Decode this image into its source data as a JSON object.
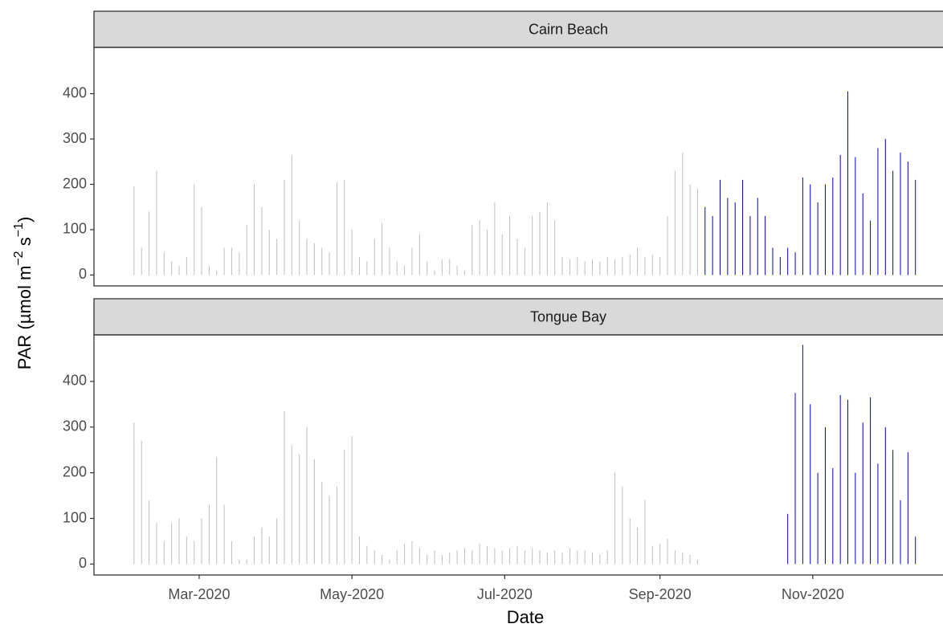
{
  "ylabel": [
    "PAR (µmol m",
    "−2",
    " s",
    "−1",
    ")"
  ],
  "xlabel": "Date",
  "xlim": [
    "2020-01-19",
    "2020-12-23"
  ],
  "xticks": [
    {
      "value": "2020-03-01",
      "label": "Mar-2020"
    },
    {
      "value": "2020-05-01",
      "label": "May-2020"
    },
    {
      "value": "2020-07-01",
      "label": "Jul-2020"
    },
    {
      "value": "2020-09-01",
      "label": "Sep-2020"
    },
    {
      "value": "2020-11-01",
      "label": "Nov-2020"
    }
  ],
  "chart_data": [
    {
      "type": "bar",
      "title": "Cairn Beach",
      "x": [
        "2020-02-04",
        "2020-02-07",
        "2020-02-10",
        "2020-02-13",
        "2020-02-16",
        "2020-02-19",
        "2020-02-22",
        "2020-02-25",
        "2020-02-28",
        "2020-03-02",
        "2020-03-05",
        "2020-03-08",
        "2020-03-11",
        "2020-03-14",
        "2020-03-17",
        "2020-03-20",
        "2020-03-23",
        "2020-03-26",
        "2020-03-29",
        "2020-04-01",
        "2020-04-04",
        "2020-04-07",
        "2020-04-10",
        "2020-04-13",
        "2020-04-16",
        "2020-04-19",
        "2020-04-22",
        "2020-04-25",
        "2020-04-28",
        "2020-05-01",
        "2020-05-04",
        "2020-05-07",
        "2020-05-10",
        "2020-05-13",
        "2020-05-16",
        "2020-05-19",
        "2020-05-22",
        "2020-05-25",
        "2020-05-28",
        "2020-05-31",
        "2020-06-03",
        "2020-06-06",
        "2020-06-09",
        "2020-06-12",
        "2020-06-15",
        "2020-06-18",
        "2020-06-21",
        "2020-06-24",
        "2020-06-27",
        "2020-06-30",
        "2020-07-03",
        "2020-07-06",
        "2020-07-09",
        "2020-07-12",
        "2020-07-15",
        "2020-07-18",
        "2020-07-21",
        "2020-07-24",
        "2020-07-27",
        "2020-07-30",
        "2020-08-02",
        "2020-08-05",
        "2020-08-08",
        "2020-08-11",
        "2020-08-14",
        "2020-08-17",
        "2020-08-20",
        "2020-08-23",
        "2020-08-26",
        "2020-08-29",
        "2020-09-01",
        "2020-09-04",
        "2020-09-07",
        "2020-09-10",
        "2020-09-13",
        "2020-09-16",
        "2020-09-19",
        "2020-09-22",
        "2020-09-25",
        "2020-09-28",
        "2020-10-01",
        "2020-10-04",
        "2020-10-07",
        "2020-10-10",
        "2020-10-13",
        "2020-10-16",
        "2020-10-19",
        "2020-10-22",
        "2020-10-25",
        "2020-10-28",
        "2020-10-31",
        "2020-11-03",
        "2020-11-06",
        "2020-11-09",
        "2020-11-12",
        "2020-11-15",
        "2020-11-18",
        "2020-11-21",
        "2020-11-24",
        "2020-11-27",
        "2020-11-30",
        "2020-12-03",
        "2020-12-06",
        "2020-12-09",
        "2020-12-12"
      ],
      "series": [
        {
          "color": "#bebebe",
          "values": [
            195,
            60,
            140,
            230,
            50,
            30,
            20,
            40,
            200,
            150,
            20,
            10,
            60,
            60,
            50,
            110,
            200,
            150,
            100,
            80,
            210,
            265,
            120,
            80,
            70,
            60,
            50,
            205,
            210,
            100,
            40,
            30,
            80,
            115,
            60,
            30,
            20,
            60,
            90,
            30,
            10,
            35,
            35,
            20,
            10,
            110,
            120,
            100,
            160,
            90,
            130,
            80,
            60,
            130,
            140,
            160,
            120,
            40,
            35,
            40,
            30,
            35,
            30,
            40,
            35,
            40,
            45,
            60,
            40,
            45,
            40,
            130,
            230,
            270,
            200,
            190,
            null,
            null,
            null,
            null,
            null,
            null,
            null,
            null,
            null,
            null,
            null,
            null,
            null,
            null,
            null,
            null,
            null,
            null,
            null,
            null,
            null,
            null,
            null,
            null,
            null,
            null,
            null,
            null,
            null
          ]
        },
        {
          "color": "#0000cd",
          "values": [
            null,
            null,
            null,
            null,
            null,
            null,
            null,
            null,
            null,
            null,
            null,
            null,
            null,
            null,
            null,
            null,
            null,
            null,
            null,
            null,
            null,
            null,
            null,
            null,
            null,
            null,
            null,
            null,
            null,
            null,
            null,
            null,
            null,
            null,
            null,
            null,
            null,
            null,
            null,
            null,
            null,
            null,
            null,
            null,
            null,
            null,
            null,
            null,
            null,
            null,
            null,
            null,
            null,
            null,
            null,
            null,
            null,
            null,
            null,
            null,
            null,
            null,
            null,
            null,
            null,
            null,
            null,
            null,
            null,
            null,
            null,
            null,
            null,
            null,
            null,
            null,
            150,
            130,
            210,
            170,
            160,
            210,
            130,
            170,
            130,
            60,
            40,
            60,
            50,
            215,
            200,
            160,
            200,
            215,
            265,
            405,
            260,
            180,
            120,
            280,
            300,
            230,
            270,
            250,
            210
          ]
        }
      ],
      "ylim": [
        -24,
        502
      ],
      "yticks": [
        0,
        100,
        200,
        300,
        400
      ]
    },
    {
      "type": "bar",
      "title": "Tongue Bay",
      "x": [
        "2020-02-04",
        "2020-02-07",
        "2020-02-10",
        "2020-02-13",
        "2020-02-16",
        "2020-02-19",
        "2020-02-22",
        "2020-02-25",
        "2020-02-28",
        "2020-03-02",
        "2020-03-05",
        "2020-03-08",
        "2020-03-11",
        "2020-03-14",
        "2020-03-17",
        "2020-03-20",
        "2020-03-23",
        "2020-03-26",
        "2020-03-29",
        "2020-04-01",
        "2020-04-04",
        "2020-04-07",
        "2020-04-10",
        "2020-04-13",
        "2020-04-16",
        "2020-04-19",
        "2020-04-22",
        "2020-04-25",
        "2020-04-28",
        "2020-05-01",
        "2020-05-04",
        "2020-05-07",
        "2020-05-10",
        "2020-05-13",
        "2020-05-16",
        "2020-05-19",
        "2020-05-22",
        "2020-05-25",
        "2020-05-28",
        "2020-05-31",
        "2020-06-03",
        "2020-06-06",
        "2020-06-09",
        "2020-06-12",
        "2020-06-15",
        "2020-06-18",
        "2020-06-21",
        "2020-06-24",
        "2020-06-27",
        "2020-06-30",
        "2020-07-03",
        "2020-07-06",
        "2020-07-09",
        "2020-07-12",
        "2020-07-15",
        "2020-07-18",
        "2020-07-21",
        "2020-07-24",
        "2020-07-27",
        "2020-07-30",
        "2020-08-02",
        "2020-08-05",
        "2020-08-08",
        "2020-08-11",
        "2020-08-14",
        "2020-08-17",
        "2020-08-20",
        "2020-08-23",
        "2020-08-26",
        "2020-08-29",
        "2020-09-01",
        "2020-09-04",
        "2020-09-07",
        "2020-09-10",
        "2020-09-13",
        "2020-09-16",
        "2020-09-19",
        "2020-09-22",
        "2020-09-25",
        "2020-09-28",
        "2020-10-01",
        "2020-10-04",
        "2020-10-07",
        "2020-10-10",
        "2020-10-13",
        "2020-10-16",
        "2020-10-19",
        "2020-10-22",
        "2020-10-25",
        "2020-10-28",
        "2020-10-31",
        "2020-11-03",
        "2020-11-06",
        "2020-11-09",
        "2020-11-12",
        "2020-11-15",
        "2020-11-18",
        "2020-11-21",
        "2020-11-24",
        "2020-11-27",
        "2020-11-30",
        "2020-12-03",
        "2020-12-06",
        "2020-12-09",
        "2020-12-12"
      ],
      "series": [
        {
          "color": "#bebebe",
          "values": [
            310,
            270,
            140,
            90,
            50,
            90,
            100,
            60,
            50,
            100,
            130,
            235,
            130,
            50,
            10,
            10,
            60,
            80,
            60,
            100,
            335,
            260,
            240,
            300,
            230,
            180,
            150,
            170,
            250,
            280,
            60,
            40,
            30,
            20,
            10,
            30,
            45,
            50,
            35,
            20,
            30,
            20,
            25,
            30,
            35,
            30,
            45,
            40,
            35,
            30,
            35,
            40,
            30,
            35,
            30,
            25,
            30,
            25,
            35,
            30,
            30,
            25,
            20,
            30,
            200,
            170,
            100,
            80,
            140,
            40,
            45,
            55,
            30,
            25,
            20,
            10,
            null,
            null,
            null,
            null,
            null,
            null,
            null,
            null,
            null,
            null,
            null,
            null,
            null,
            null,
            null,
            null,
            null,
            null,
            null,
            null,
            null,
            null,
            null,
            null,
            null,
            null,
            null,
            null,
            null
          ]
        },
        {
          "color": "#0000cd",
          "values": [
            null,
            null,
            null,
            null,
            null,
            null,
            null,
            null,
            null,
            null,
            null,
            null,
            null,
            null,
            null,
            null,
            null,
            null,
            null,
            null,
            null,
            null,
            null,
            null,
            null,
            null,
            null,
            null,
            null,
            null,
            null,
            null,
            null,
            null,
            null,
            null,
            null,
            null,
            null,
            null,
            null,
            null,
            null,
            null,
            null,
            null,
            null,
            null,
            null,
            null,
            null,
            null,
            null,
            null,
            null,
            null,
            null,
            null,
            null,
            null,
            null,
            null,
            null,
            null,
            null,
            null,
            null,
            null,
            null,
            null,
            null,
            null,
            null,
            null,
            null,
            null,
            null,
            null,
            null,
            null,
            null,
            null,
            null,
            null,
            null,
            null,
            null,
            110,
            375,
            480,
            350,
            200,
            300,
            210,
            370,
            360,
            200,
            310,
            365,
            220,
            300,
            250,
            140,
            245,
            60
          ]
        }
      ],
      "ylim": [
        -24,
        502
      ],
      "yticks": [
        0,
        100,
        200,
        300,
        400
      ]
    }
  ]
}
